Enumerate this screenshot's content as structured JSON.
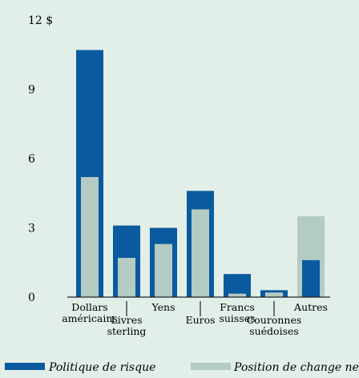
{
  "chart_data": {
    "type": "bar",
    "title": "",
    "xlabel": "",
    "ylabel": "",
    "ylim": [
      0,
      12
    ],
    "yticks": [
      0,
      3,
      6,
      9,
      12
    ],
    "ytick_labels": [
      "0",
      "3",
      "6",
      "9",
      "12 $"
    ],
    "categories": [
      {
        "lines": [
          "Dollars",
          "américains"
        ],
        "row": "upper"
      },
      {
        "lines": [
          "Livres",
          "sterling"
        ],
        "row": "lower"
      },
      {
        "lines": [
          "Yens"
        ],
        "row": "upper"
      },
      {
        "lines": [
          "Euros"
        ],
        "row": "lower"
      },
      {
        "lines": [
          "Francs",
          "suisses"
        ],
        "row": "upper"
      },
      {
        "lines": [
          "Couronnes",
          "suédoises"
        ],
        "row": "lower"
      },
      {
        "lines": [
          "Autres"
        ],
        "row": "upper"
      }
    ],
    "series": [
      {
        "name": "Politique de risque",
        "color": "#0a5aa0",
        "values": [
          10.7,
          3.1,
          3.0,
          4.6,
          1.0,
          0.3,
          1.6
        ]
      },
      {
        "name": "Position de change nette",
        "color": "#b3cbc2",
        "values": [
          5.2,
          1.7,
          2.3,
          3.8,
          0.15,
          0.2,
          3.5
        ]
      }
    ],
    "grid": false,
    "legend": "bottom"
  }
}
